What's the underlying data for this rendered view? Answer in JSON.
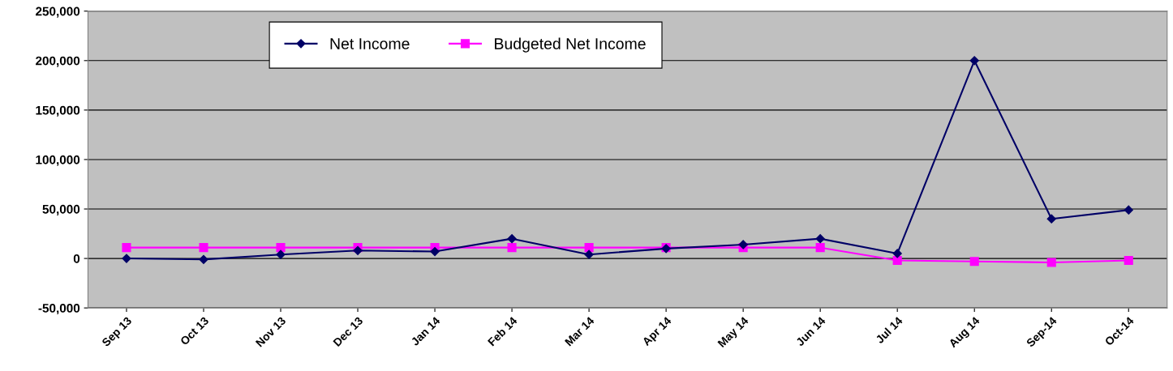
{
  "chart_data": {
    "type": "line",
    "categories": [
      "Sep 13",
      "Oct 13",
      "Nov 13",
      "Dec 13",
      "Jan 14",
      "Feb 14",
      "Mar 14",
      "Apr 14",
      "May 14",
      "Jun 14",
      "Jul 14",
      "Aug 14",
      "Sep-14",
      "Oct-14"
    ],
    "series": [
      {
        "name": "Net Income",
        "color": "#000066",
        "marker": "diamond",
        "values": [
          0,
          -1000,
          4000,
          8000,
          7000,
          20000,
          4000,
          10000,
          14000,
          20000,
          5000,
          200000,
          40000,
          49000
        ]
      },
      {
        "name": "Budgeted Net Income",
        "color": "#ff00ff",
        "marker": "square",
        "values": [
          11000,
          11000,
          11000,
          11000,
          11000,
          11000,
          11000,
          11000,
          11000,
          11000,
          -2000,
          -3000,
          -4000,
          -2000
        ]
      }
    ],
    "ylim": [
      -50000,
      250000
    ],
    "yticks": [
      {
        "value": -50000,
        "label": "-50,000"
      },
      {
        "value": 0,
        "label": "0"
      },
      {
        "value": 50000,
        "label": "50,000"
      },
      {
        "value": 100000,
        "label": "100,000"
      },
      {
        "value": 150000,
        "label": "150,000"
      },
      {
        "value": 200000,
        "label": "200,000"
      },
      {
        "value": 250000,
        "label": "250,000"
      }
    ],
    "grid": "y",
    "legend": "top",
    "line_style": "solid"
  }
}
